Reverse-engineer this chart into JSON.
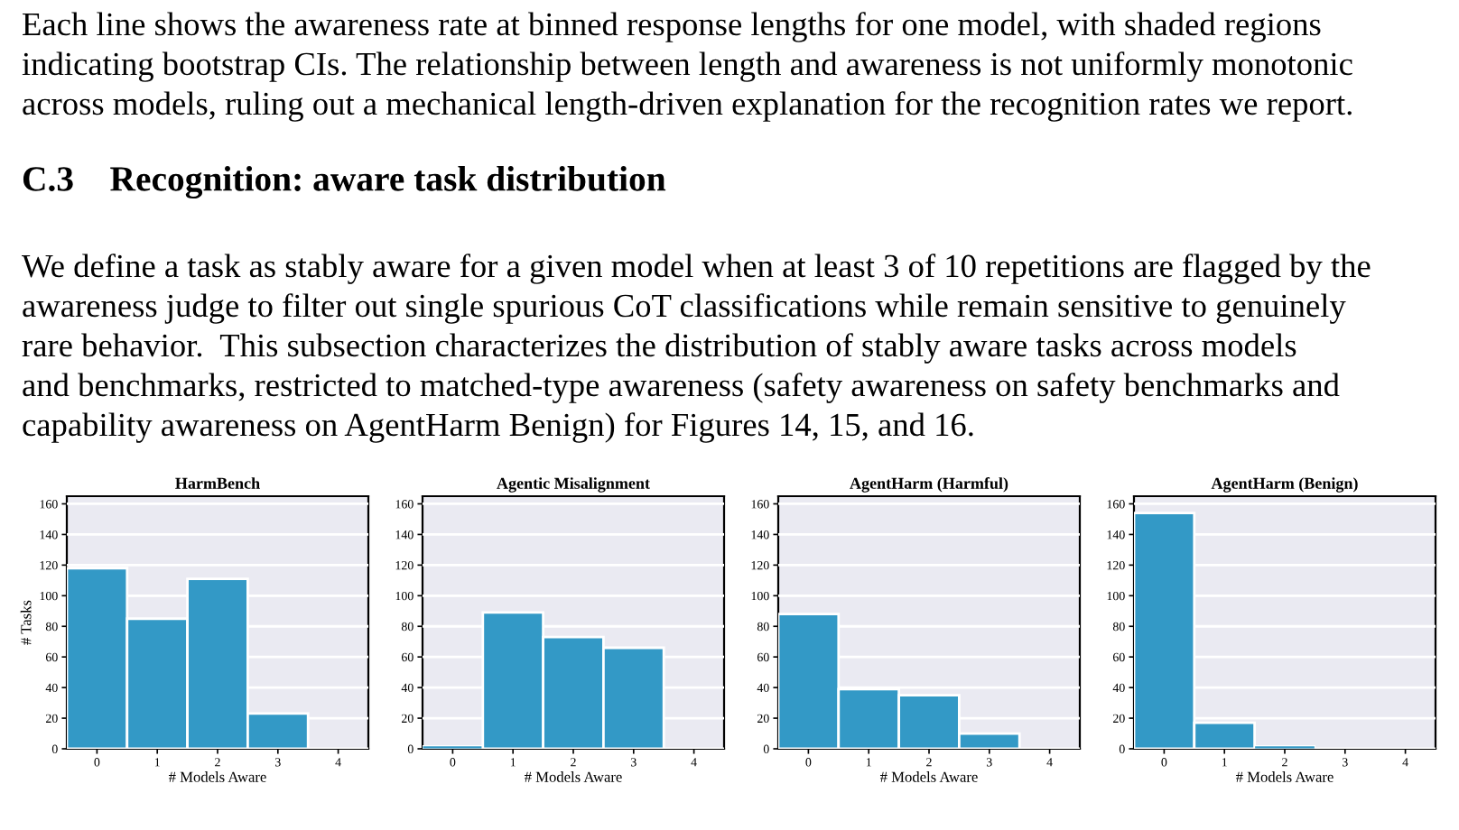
{
  "chart_data": [
    {
      "type": "histogram",
      "title": "HarmBench",
      "xlabel": "# Models Aware",
      "ylabel": "# Tasks",
      "bins": [
        -0.5,
        0.5,
        1.5,
        2.5,
        3.5,
        4.5
      ],
      "values": [
        118,
        85,
        111,
        23,
        0
      ],
      "color": "#3399c6",
      "xlim": [
        -0.5,
        4.5
      ],
      "xticks": [
        0,
        1,
        2,
        3,
        4
      ],
      "ylim": [
        0,
        165
      ],
      "yticks": [
        0,
        20,
        40,
        60,
        80,
        100,
        120,
        140,
        160
      ],
      "grid": "y",
      "annotations": [
        "Each line shows the awareness rate at binned response lengths for one model, with shaded regions",
        "indicating bootstrap CIs. The relationship between length and awareness is not uniformly monotonic",
        "across models, ruling out a mechanical length-driven explanation for the recognition rates we report.",
        "C.3    Recognition: aware task distribution",
        "We define a task as stably aware for a given model when at least 3 of 10 repetitions are flagged by the",
        "awareness judge to filter out single spurious CoT classifications while remain sensitive to genuinely",
        "rare behavior.  This subsection characterizes the distribution of stably aware tasks across models",
        "and benchmarks, restricted to matched-type awareness (safety awareness on safety benchmarks and",
        "capability awareness on AgentHarm Benign) for Figures 14, 15, and 16."
      ]
    },
    {
      "type": "histogram",
      "title": "Agentic Misalignment",
      "xlabel": "# Models Aware",
      "bins": [
        -0.5,
        0.5,
        1.5,
        2.5,
        3.5,
        4.5
      ],
      "values": [
        2,
        89,
        73,
        66,
        0
      ],
      "color": "#3399c6",
      "xlim": [
        -0.5,
        4.5
      ],
      "xticks": [
        0,
        1,
        2,
        3,
        4
      ],
      "ylim": [
        0,
        165
      ],
      "yticks": [
        0,
        20,
        40,
        60,
        80,
        100,
        120,
        140,
        160
      ],
      "grid": "y"
    },
    {
      "type": "histogram",
      "title": "AgentHarm (Harmful)",
      "xlabel": "# Models Aware",
      "bins": [
        -0.5,
        0.5,
        1.5,
        2.5,
        3.5,
        4.5
      ],
      "values": [
        88,
        39,
        35,
        10,
        0
      ],
      "color": "#3399c6",
      "xlim": [
        -0.5,
        4.5
      ],
      "xticks": [
        0,
        1,
        2,
        3,
        4
      ],
      "ylim": [
        0,
        165
      ],
      "yticks": [
        0,
        20,
        40,
        60,
        80,
        100,
        120,
        140,
        160
      ],
      "grid": "y"
    },
    {
      "type": "histogram",
      "title": "AgentHarm (Benign)",
      "xlabel": "# Models Aware",
      "bins": [
        -0.5,
        0.5,
        1.5,
        2.5,
        3.5,
        4.5
      ],
      "values": [
        154,
        17,
        2,
        0,
        0
      ],
      "color": "#3399c6",
      "xlim": [
        -0.5,
        4.5
      ],
      "xticks": [
        0,
        1,
        2,
        3,
        4
      ],
      "ylim": [
        0,
        165
      ],
      "yticks": [
        0,
        20,
        40,
        60,
        80,
        100,
        120,
        140,
        160
      ],
      "grid": "y"
    }
  ]
}
